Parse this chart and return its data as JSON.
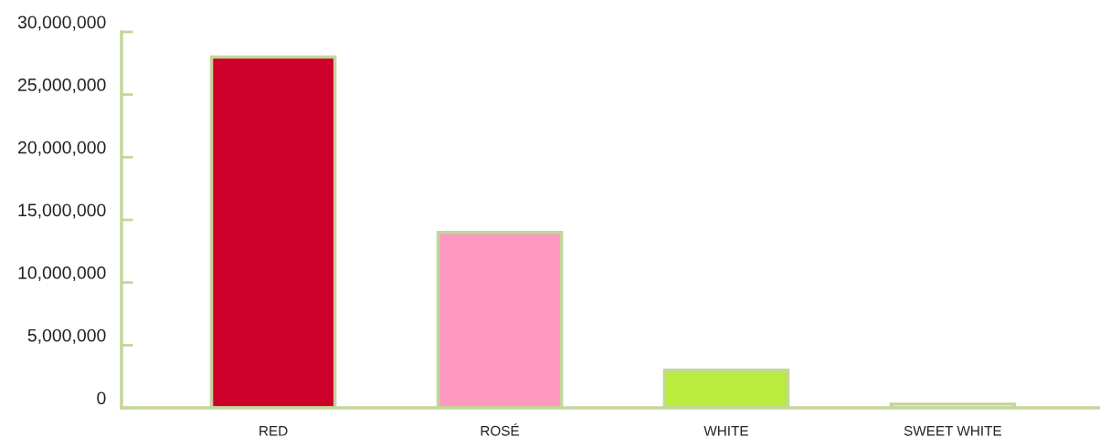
{
  "chart_data": {
    "type": "bar",
    "categories": [
      "RED",
      "ROSÉ",
      "WHITE",
      "SWEET WHITE"
    ],
    "values": [
      28000000,
      14000000,
      3000000,
      300000
    ],
    "colors": [
      "#cc0029",
      "#ff99c0",
      "#b9ec3c",
      "#ffffff"
    ],
    "ylim": [
      0,
      30000000
    ],
    "yticks": [
      {
        "value": 0,
        "label": "0"
      },
      {
        "value": 5000000,
        "label": "5,000,000"
      },
      {
        "value": 10000000,
        "label": "10,000,000"
      },
      {
        "value": 15000000,
        "label": "15,000,000"
      },
      {
        "value": 20000000,
        "label": "20,000,000"
      },
      {
        "value": 25000000,
        "label": "25,000,000"
      },
      {
        "value": 30000000,
        "label": "30,000,000"
      }
    ],
    "grid": false
  }
}
